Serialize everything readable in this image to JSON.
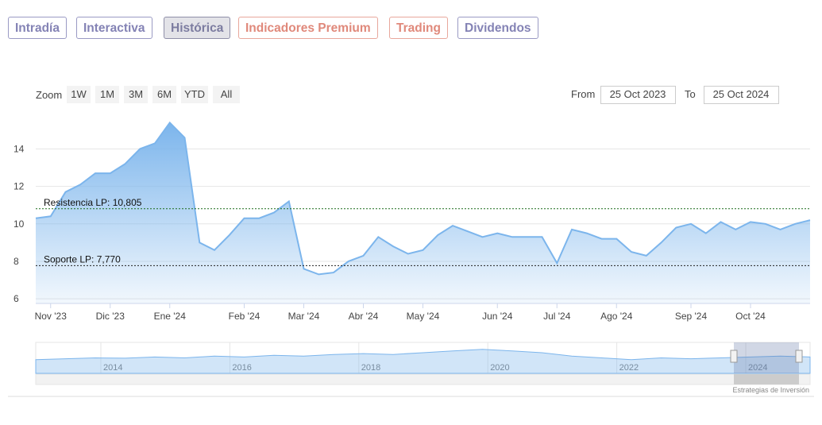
{
  "tabs": [
    "Intradía",
    "Interactiva",
    "Histórica",
    "Indicadores Premium",
    "Trading",
    "Dividendos"
  ],
  "zoom": {
    "label": "Zoom",
    "buttons": [
      "1W",
      "1M",
      "3M",
      "6M",
      "YTD",
      "All"
    ]
  },
  "range": {
    "from_label": "From",
    "from": "25 Oct 2023",
    "to_label": "To",
    "to": "25 Oct 2024"
  },
  "credit": "Estrategias de Inversión",
  "chart_data": {
    "type": "area",
    "color": "#7cb5ec",
    "grid": true,
    "categories": [
      null,
      "Nov '23",
      null,
      null,
      null,
      "Dic '23",
      null,
      null,
      null,
      "Ene '24",
      null,
      null,
      null,
      null,
      "Feb '24",
      null,
      null,
      null,
      "Mar '24",
      null,
      null,
      null,
      "Abr '24",
      null,
      null,
      null,
      "May '24",
      null,
      null,
      null,
      null,
      "Jun '24",
      null,
      null,
      null,
      "Jul '24",
      null,
      null,
      null,
      "Ago '24",
      null,
      null,
      null,
      null,
      "Sep '24",
      null,
      null,
      null,
      "Oct '24",
      null,
      null,
      null,
      null
    ],
    "values": [
      10.3,
      10.4,
      11.7,
      12.1,
      12.7,
      12.7,
      13.2,
      14.0,
      14.3,
      15.4,
      14.6,
      9.0,
      8.6,
      9.4,
      10.3,
      10.3,
      10.6,
      11.2,
      7.6,
      7.3,
      7.4,
      8.0,
      8.3,
      9.3,
      8.8,
      8.4,
      8.6,
      9.4,
      9.9,
      9.6,
      9.3,
      9.5,
      9.3,
      9.3,
      9.3,
      7.9,
      9.7,
      9.5,
      9.2,
      9.2,
      8.5,
      8.3,
      9.0,
      9.8,
      10.0,
      9.5,
      10.1,
      9.7,
      10.1,
      10.0,
      9.7,
      10.0,
      10.2
    ],
    "ylim": [
      5.75,
      15.8
    ],
    "yticks": [
      6,
      8,
      10,
      12,
      14
    ],
    "annotations": [
      {
        "label": "Resistencia LP: 10,805",
        "value": 10.805
      },
      {
        "label": "Soporte LP: 7,770",
        "value": 7.77
      }
    ],
    "navigator": {
      "years": [
        "2014",
        "2016",
        "2018",
        "2020",
        "2022",
        "2024"
      ],
      "values": [
        8,
        8.5,
        9,
        8.8,
        9.5,
        9,
        10,
        9.5,
        10.5,
        10,
        11,
        11.5,
        11,
        12,
        13,
        14,
        13,
        12,
        10,
        9,
        8,
        9,
        8.5,
        9,
        9.5,
        10,
        9.5
      ],
      "ylim": [
        0,
        18
      ]
    }
  }
}
